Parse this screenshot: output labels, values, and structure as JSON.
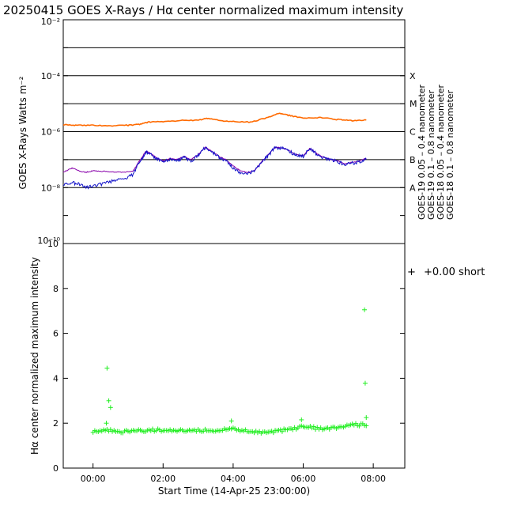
{
  "title": "20250415 GOES X-Rays / Hα center normalized maximum intensity",
  "colors": {
    "goes19_short": "#1010c8",
    "goes19_long": "#900030",
    "goes18_short": "#8800aa",
    "goes18_long": "#ff6a00",
    "halpha": "#22ee22"
  },
  "chart_data": [
    {
      "type": "line",
      "title": "20250415 GOES X-Rays / Hα center normalized maximum intensity",
      "ylabel": "GOES X-Rays Watts m⁻²",
      "yscale": "log",
      "ylim": [
        1e-10,
        0.01
      ],
      "xlim": [
        -0.85,
        8.9
      ],
      "y_ticks": [
        {
          "value": 0.01,
          "label": "10⁻²"
        },
        {
          "value": 0.0001,
          "label": "10⁻⁴"
        },
        {
          "value": 1e-06,
          "label": "10⁻⁶"
        },
        {
          "value": 1e-08,
          "label": "10⁻⁸"
        },
        {
          "value": 1e-10,
          "label": "10⁻¹⁰"
        }
      ],
      "flare_classes": [
        {
          "label": "X",
          "level": 0.0001
        },
        {
          "label": "M",
          "level": 1e-05
        },
        {
          "label": "C",
          "level": 1e-06
        },
        {
          "label": "B",
          "level": 1e-07
        },
        {
          "label": "A",
          "level": 1e-08
        }
      ],
      "class_lines": [
        0.001,
        0.0001,
        1e-05,
        1e-06,
        1e-07,
        1e-08
      ],
      "legend": [
        {
          "name": "GOES-19 0.05 – 0.4 nanometer",
          "color_key": "goes19_short"
        },
        {
          "name": "GOES-19 0.1 – 0.8 nanometer",
          "color_key": "goes19_long"
        },
        {
          "name": "GOES-18 0.05 – 0.4 nanometer",
          "color_key": "goes18_short"
        },
        {
          "name": "GOES-18 0.1 – 0.8 nanometer",
          "color_key": "goes18_long"
        }
      ],
      "series": [
        {
          "name": "GOES-18 0.1 – 0.8 nanometer",
          "color_key": "goes18_long",
          "x": [
            -0.85,
            -0.5,
            0.0,
            0.5,
            1.0,
            1.3,
            1.6,
            2.0,
            2.5,
            3.0,
            3.3,
            3.7,
            4.0,
            4.5,
            5.0,
            5.3,
            5.6,
            6.0,
            6.5,
            7.0,
            7.4,
            7.8
          ],
          "y": [
            1.8e-06,
            1.7e-06,
            1.7e-06,
            1.6e-06,
            1.7e-06,
            1.8e-06,
            2.2e-06,
            2.3e-06,
            2.5e-06,
            2.6e-06,
            3e-06,
            2.4e-06,
            2.3e-06,
            2.2e-06,
            3.2e-06,
            4.5e-06,
            3.8e-06,
            3e-06,
            3.2e-06,
            2.7e-06,
            2.5e-06,
            2.6e-06
          ]
        },
        {
          "name": "GOES-18 0.05 – 0.4 nanometer",
          "color_key": "goes18_short",
          "x": [
            -0.85,
            -0.6,
            -0.4,
            -0.2,
            0.0,
            0.3,
            0.6,
            0.9,
            1.15,
            1.3,
            1.4,
            1.5,
            1.6,
            1.8,
            2.0,
            2.2,
            2.4,
            2.6,
            2.8,
            3.0,
            3.2,
            3.4,
            3.6,
            3.8,
            4.0,
            4.2,
            4.4,
            4.6,
            4.8,
            5.0,
            5.2,
            5.4,
            5.6,
            5.8,
            6.0,
            6.2,
            6.4,
            6.6,
            6.8,
            7.0,
            7.2,
            7.4,
            7.6,
            7.8
          ],
          "y": [
            3.5e-08,
            5e-08,
            4e-08,
            3.5e-08,
            4e-08,
            3.8e-08,
            3.6e-08,
            3.5e-08,
            4e-08,
            8e-08,
            1.2e-07,
            2e-07,
            1.8e-07,
            1.2e-07,
            9e-08,
            1.1e-07,
            1e-07,
            1.3e-07,
            1e-07,
            1.5e-07,
            2.8e-07,
            2e-07,
            1.3e-07,
            1e-07,
            6e-08,
            4e-08,
            3.5e-08,
            4e-08,
            8e-08,
            1.5e-07,
            2.8e-07,
            2.6e-07,
            2.1e-07,
            1.5e-07,
            1.4e-07,
            2.6e-07,
            1.6e-07,
            1.2e-07,
            1e-07,
            9e-08,
            7e-08,
            8e-08,
            9e-08,
            1.1e-07
          ]
        },
        {
          "name": "GOES-19 0.05 – 0.4 nanometer",
          "color_key": "goes19_short",
          "x": [
            -0.85,
            -0.6,
            -0.4,
            -0.2,
            0.0,
            0.3,
            0.6,
            0.9,
            1.15,
            1.3,
            1.4,
            1.5,
            1.6,
            1.8,
            2.0,
            2.2,
            2.4,
            2.6,
            2.8,
            3.0,
            3.2,
            3.4,
            3.6,
            3.8,
            4.0,
            4.2,
            4.4,
            4.6,
            4.8,
            5.0,
            5.2,
            5.4,
            5.6,
            5.8,
            6.0,
            6.2,
            6.4,
            6.6,
            6.8,
            7.0,
            7.2,
            7.4,
            7.6,
            7.8
          ],
          "y": [
            1.2e-08,
            1.5e-08,
            1.3e-08,
            1e-08,
            1.1e-08,
            1.4e-08,
            1.8e-08,
            2e-08,
            3e-08,
            7e-08,
            1.1e-07,
            1.9e-07,
            1.7e-07,
            1.1e-07,
            8e-08,
            1e-07,
            9e-08,
            1.2e-07,
            9e-08,
            1.4e-07,
            2.7e-07,
            1.9e-07,
            1.2e-07,
            9e-08,
            5e-08,
            3.5e-08,
            3.2e-08,
            3.8e-08,
            7.5e-08,
            1.4e-07,
            2.7e-07,
            2.5e-07,
            2e-07,
            1.4e-07,
            1.3e-07,
            2.5e-07,
            1.5e-07,
            1.1e-07,
            9.5e-08,
            8.5e-08,
            6.5e-08,
            7.5e-08,
            8.5e-08,
            1e-07
          ]
        }
      ]
    },
    {
      "type": "scatter",
      "ylabel": "Hα center normalized maximum intensity",
      "xlabel": "Start Time (14-Apr-25 23:00:00)",
      "ylim": [
        0,
        10
      ],
      "xlim": [
        -0.85,
        8.9
      ],
      "y_ticks": [
        0,
        2,
        4,
        6,
        8,
        10
      ],
      "x_ticks": [
        {
          "value": 0,
          "label": "00:00"
        },
        {
          "value": 2,
          "label": "02:00"
        },
        {
          "value": 4,
          "label": "04:00"
        },
        {
          "value": 6,
          "label": "06:00"
        },
        {
          "value": 8,
          "label": "08:00"
        }
      ],
      "legend": [
        {
          "name": "+0.00 short",
          "symbol": "+",
          "color_key": "halpha"
        }
      ],
      "baseline": {
        "x_start": 0.0,
        "x_end": 7.8,
        "x_step": 0.05,
        "y": [
          {
            "x": 0.0,
            "v": 1.65
          },
          {
            "x": 0.4,
            "v": 1.7
          },
          {
            "x": 0.8,
            "v": 1.62
          },
          {
            "x": 1.2,
            "v": 1.65
          },
          {
            "x": 1.8,
            "v": 1.7
          },
          {
            "x": 2.4,
            "v": 1.65
          },
          {
            "x": 3.0,
            "v": 1.68
          },
          {
            "x": 3.6,
            "v": 1.7
          },
          {
            "x": 4.0,
            "v": 1.75
          },
          {
            "x": 4.5,
            "v": 1.62
          },
          {
            "x": 5.0,
            "v": 1.6
          },
          {
            "x": 5.5,
            "v": 1.7
          },
          {
            "x": 6.0,
            "v": 1.85
          },
          {
            "x": 6.5,
            "v": 1.75
          },
          {
            "x": 7.0,
            "v": 1.8
          },
          {
            "x": 7.5,
            "v": 1.95
          },
          {
            "x": 7.8,
            "v": 1.9
          }
        ]
      },
      "outliers": [
        {
          "x": 0.4,
          "y": 4.45
        },
        {
          "x": 0.45,
          "y": 3.0
        },
        {
          "x": 0.5,
          "y": 2.7
        },
        {
          "x": 0.38,
          "y": 2.0
        },
        {
          "x": 3.95,
          "y": 2.1
        },
        {
          "x": 5.95,
          "y": 2.15
        },
        {
          "x": 7.75,
          "y": 7.05
        },
        {
          "x": 7.77,
          "y": 3.78
        },
        {
          "x": 7.8,
          "y": 2.25
        }
      ]
    }
  ]
}
